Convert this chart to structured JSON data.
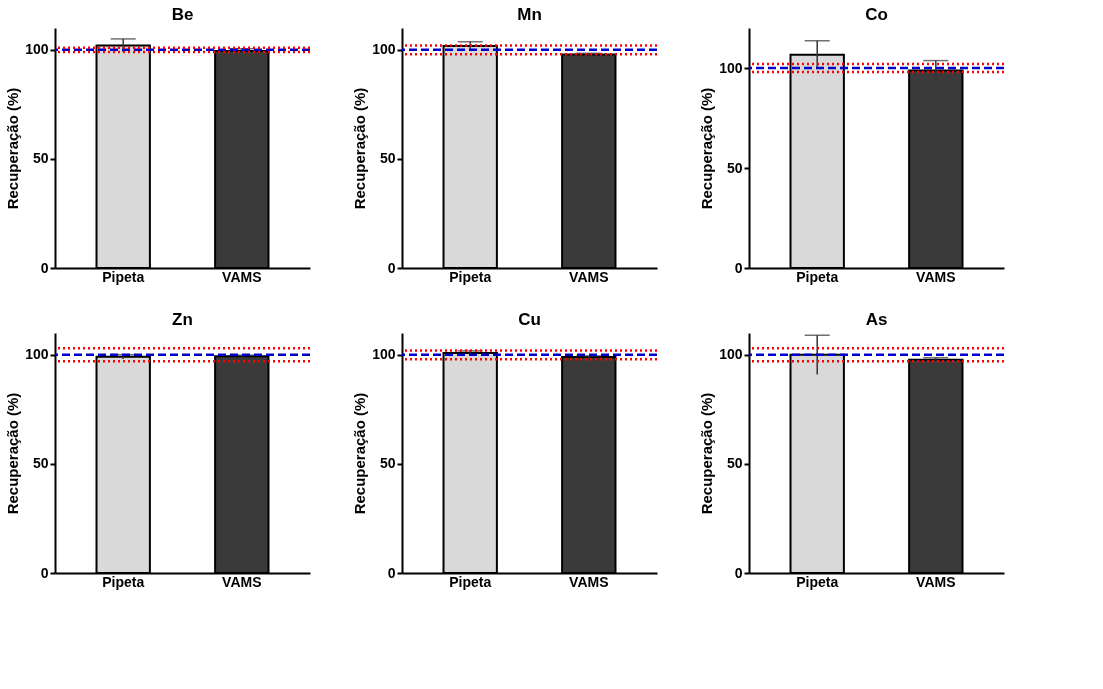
{
  "chart_data": [
    {
      "type": "bar",
      "title": "Be",
      "ylabel": "Recuperação (%)",
      "categories": [
        "Pipeta",
        "VAMS"
      ],
      "values": [
        102,
        99.5
      ],
      "errors": [
        3,
        1
      ],
      "colors": [
        "#d9d9d9",
        "#3a3a3a"
      ],
      "ylim": [
        0,
        110
      ],
      "yticks": [
        0,
        50,
        100
      ],
      "grid": false,
      "ref_lines": [
        {
          "axis": "y",
          "value": 100,
          "color": "#0000cc",
          "line_style": "dashed"
        },
        {
          "axis": "y",
          "value": 99,
          "color": "#ff0000",
          "line_style": "dotted"
        },
        {
          "axis": "y",
          "value": 101,
          "color": "#ff0000",
          "line_style": "dotted"
        }
      ]
    },
    {
      "type": "bar",
      "title": "Mn",
      "ylabel": "Recuperação (%)",
      "categories": [
        "Pipeta",
        "VAMS"
      ],
      "values": [
        101.7,
        97.9
      ],
      "errors": [
        2,
        0.5
      ],
      "colors": [
        "#d9d9d9",
        "#3a3a3a"
      ],
      "ylim": [
        0,
        110
      ],
      "yticks": [
        0,
        50,
        100
      ],
      "grid": false,
      "ref_lines": [
        {
          "axis": "y",
          "value": 100,
          "color": "#0000cc",
          "line_style": "dashed"
        },
        {
          "axis": "y",
          "value": 98,
          "color": "#ff0000",
          "line_style": "dotted"
        },
        {
          "axis": "y",
          "value": 102,
          "color": "#ff0000",
          "line_style": "dotted"
        }
      ]
    },
    {
      "type": "bar",
      "title": "Co",
      "ylabel": "Recuperação (%)",
      "categories": [
        "Pipeta",
        "VAMS"
      ],
      "values": [
        106.6,
        98.7
      ],
      "errors": [
        7,
        5
      ],
      "colors": [
        "#d9d9d9",
        "#3a3a3a"
      ],
      "ylim": [
        0,
        120
      ],
      "yticks": [
        0,
        50,
        100
      ],
      "grid": false,
      "ref_lines": [
        {
          "axis": "y",
          "value": 100,
          "color": "#0000cc",
          "line_style": "dashed"
        },
        {
          "axis": "y",
          "value": 98,
          "color": "#ff0000",
          "line_style": "dotted"
        },
        {
          "axis": "y",
          "value": 102,
          "color": "#ff0000",
          "line_style": "dotted"
        }
      ]
    },
    {
      "type": "bar",
      "title": "Zn",
      "ylabel": "Recuperação (%)",
      "categories": [
        "Pipeta",
        "VAMS"
      ],
      "values": [
        99.1,
        99.3
      ],
      "errors": [
        1,
        0.5
      ],
      "colors": [
        "#d9d9d9",
        "#3a3a3a"
      ],
      "ylim": [
        0,
        110
      ],
      "yticks": [
        0,
        50,
        100
      ],
      "grid": false,
      "ref_lines": [
        {
          "axis": "y",
          "value": 100,
          "color": "#0000cc",
          "line_style": "dashed"
        },
        {
          "axis": "y",
          "value": 97,
          "color": "#ff0000",
          "line_style": "dotted"
        },
        {
          "axis": "y",
          "value": 103,
          "color": "#ff0000",
          "line_style": "dotted"
        }
      ]
    },
    {
      "type": "bar",
      "title": "Cu",
      "ylabel": "Recuperação (%)",
      "categories": [
        "Pipeta",
        "VAMS"
      ],
      "values": [
        100.8,
        99
      ],
      "errors": [
        1,
        0.5
      ],
      "colors": [
        "#d9d9d9",
        "#3a3a3a"
      ],
      "ylim": [
        0,
        110
      ],
      "yticks": [
        0,
        50,
        100
      ],
      "grid": false,
      "ref_lines": [
        {
          "axis": "y",
          "value": 100,
          "color": "#0000cc",
          "line_style": "dashed"
        },
        {
          "axis": "y",
          "value": 98,
          "color": "#ff0000",
          "line_style": "dotted"
        },
        {
          "axis": "y",
          "value": 102,
          "color": "#ff0000",
          "line_style": "dotted"
        }
      ]
    },
    {
      "type": "bar",
      "title": "As",
      "ylabel": "Recuperação (%)",
      "categories": [
        "Pipeta",
        "VAMS"
      ],
      "values": [
        100,
        97.7
      ],
      "errors": [
        9,
        1
      ],
      "colors": [
        "#d9d9d9",
        "#3a3a3a"
      ],
      "ylim": [
        0,
        110
      ],
      "yticks": [
        0,
        50,
        100
      ],
      "grid": false,
      "ref_lines": [
        {
          "axis": "y",
          "value": 100,
          "color": "#0000cc",
          "line_style": "dashed"
        },
        {
          "axis": "y",
          "value": 97,
          "color": "#ff0000",
          "line_style": "dotted"
        },
        {
          "axis": "y",
          "value": 103,
          "color": "#ff0000",
          "line_style": "dotted"
        }
      ]
    }
  ]
}
